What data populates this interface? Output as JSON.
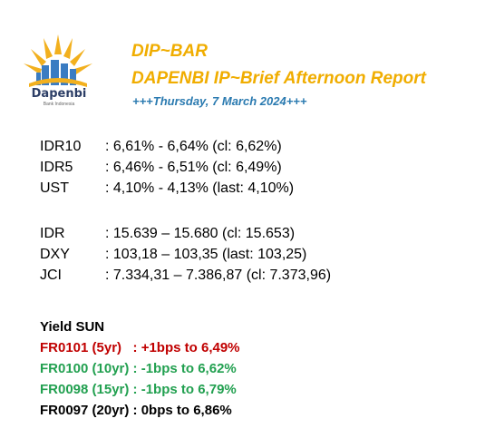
{
  "header": {
    "logo_text": "Dapenbi",
    "logo_sub": "Bank Indonesia",
    "title_1": "DIP~BAR",
    "title_2": "DAPENBI IP~Brief Afternoon Report",
    "date": "+++Thursday, 7 March 2024+++"
  },
  "rates_group_1": [
    {
      "label": "IDR10",
      "value": ": 6,61% - 6,64% (cl: 6,62%)"
    },
    {
      "label": "IDR5",
      "value": ": 6,46% - 6,51% (cl: 6,49%)"
    },
    {
      "label": "UST",
      "value": ": 4,10% - 4,13% (last: 4,10%)"
    }
  ],
  "rates_group_2": [
    {
      "label": "IDR",
      "value": ": 15.639 – 15.680 (cl: 15.653)"
    },
    {
      "label": "DXY",
      "value": ": 103,18 – 103,35 (last: 103,25)"
    },
    {
      "label": "JCI",
      "value": ": 7.334,31 – 7.386,87 (cl: 7.373,96)"
    }
  ],
  "yield": {
    "heading": "Yield SUN",
    "items": [
      {
        "text": "FR0101 (5yr)   : +1bps to 6,49%",
        "color": "#c00000"
      },
      {
        "text": "FR0100 (10yr) : -1bps to 6,62%",
        "color": "#22a050"
      },
      {
        "text": "FR0098 (15yr) : -1bps to 6,79%",
        "color": "#22a050"
      },
      {
        "text": "FR0097 (20yr) : 0bps to 6,86%",
        "color": "#000000"
      }
    ]
  }
}
